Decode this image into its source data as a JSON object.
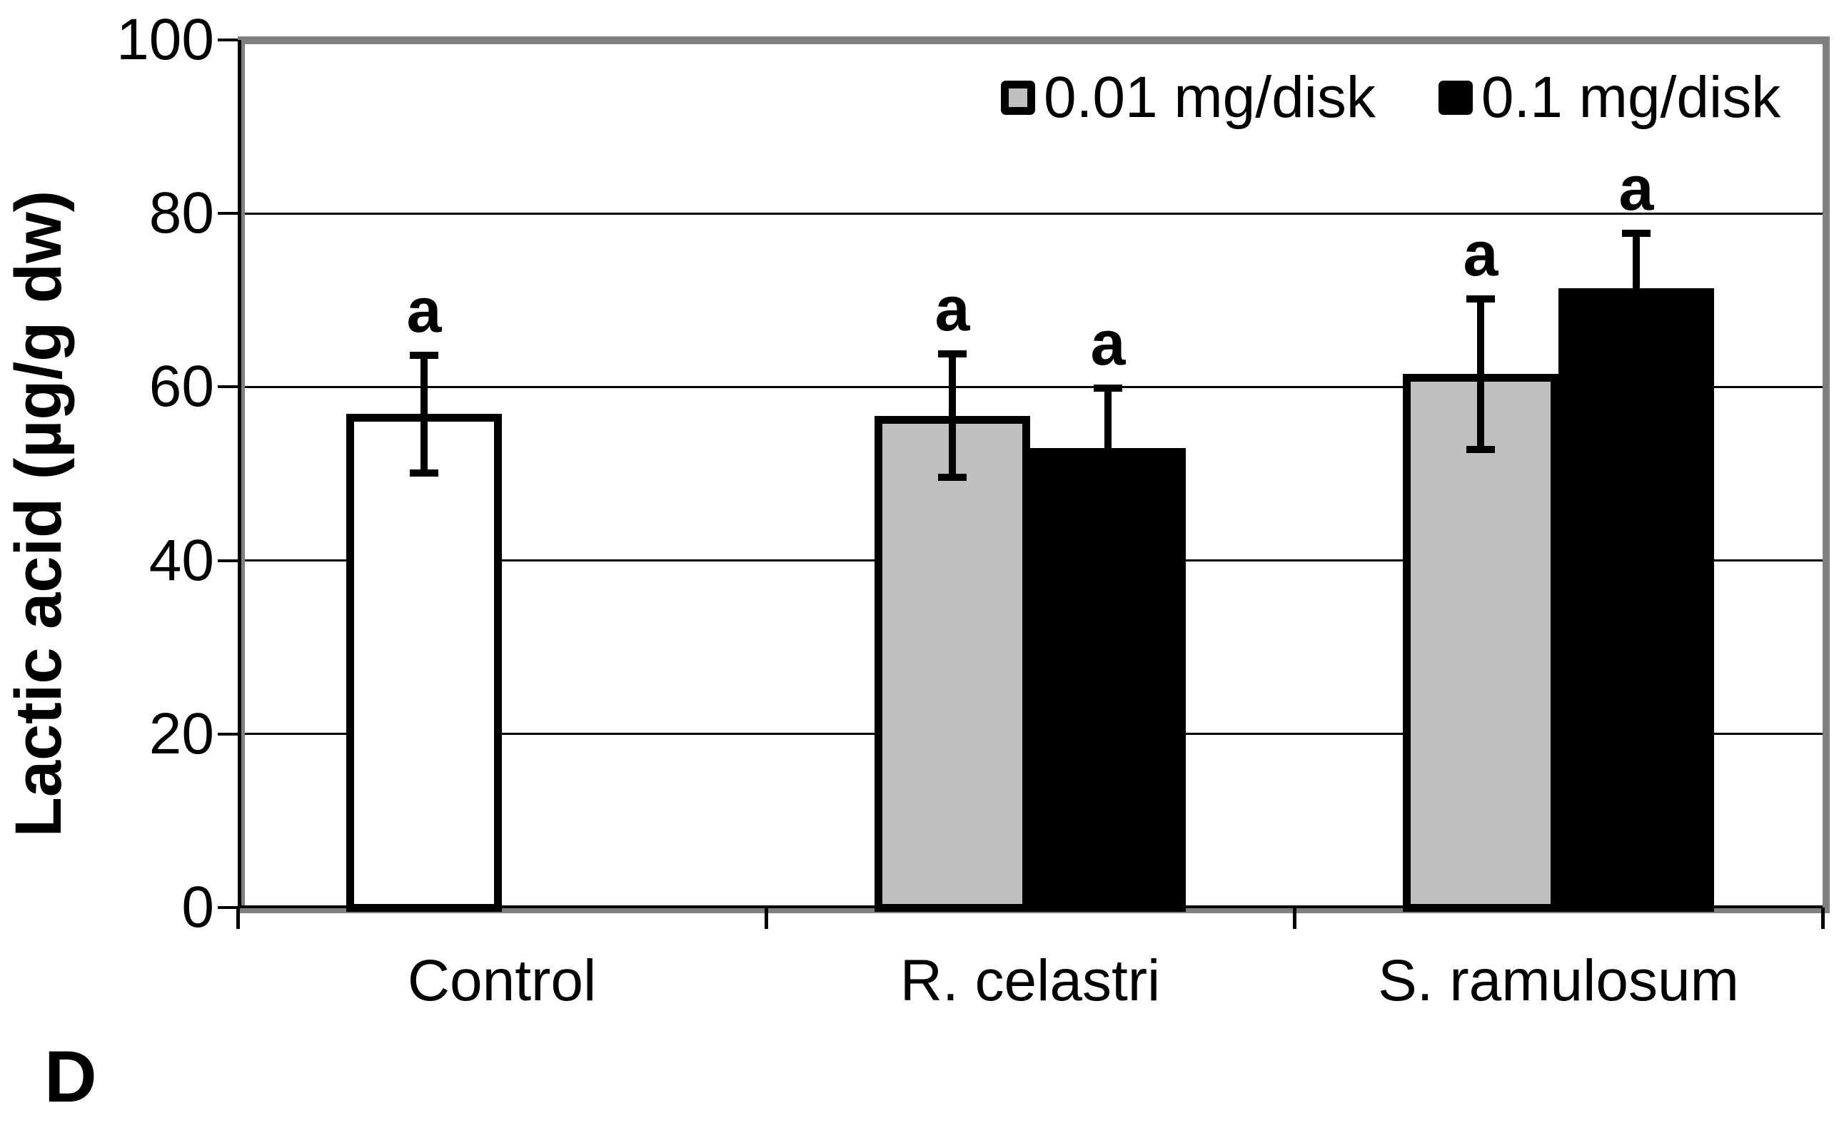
{
  "panel_label": "D",
  "colors": {
    "plot_border_gray": "#808080",
    "gridline": "#000000",
    "bar_border": "#000000",
    "background": "#ffffff",
    "control_bar_fill": "#FFFFFF",
    "series1_fill": "#C0C0C0",
    "series2_fill": "#000000"
  },
  "chart_data": {
    "type": "bar",
    "title": "",
    "ylabel": "Lactic acid (µg/g dw)",
    "xlabel": "",
    "ylim": [
      0,
      100
    ],
    "yticks": [
      0,
      20,
      40,
      60,
      80,
      100
    ],
    "grid": true,
    "legend_position": "top-right-inside",
    "categories": [
      "Control",
      "R. celastri",
      "S. ramulosum"
    ],
    "series": [
      {
        "name": "0.01 mg/disk",
        "legend_color": "#C0C0C0",
        "values": [
          56.9,
          56.7,
          61.5
        ],
        "errors": [
          7.2,
          7.5,
          9.1
        ],
        "bar_colors": [
          "#FFFFFF",
          "#C0C0C0",
          "#C0C0C0"
        ],
        "sig_labels": [
          "a",
          "a",
          "a"
        ]
      },
      {
        "name": "0.1 mg/disk",
        "legend_color": "#000000",
        "values": [
          null,
          53.0,
          71.4
        ],
        "errors": [
          null,
          7.3,
          6.7
        ],
        "bar_colors": [
          null,
          "#000000",
          "#000000"
        ],
        "sig_labels": [
          null,
          "a",
          "a"
        ]
      }
    ]
  }
}
